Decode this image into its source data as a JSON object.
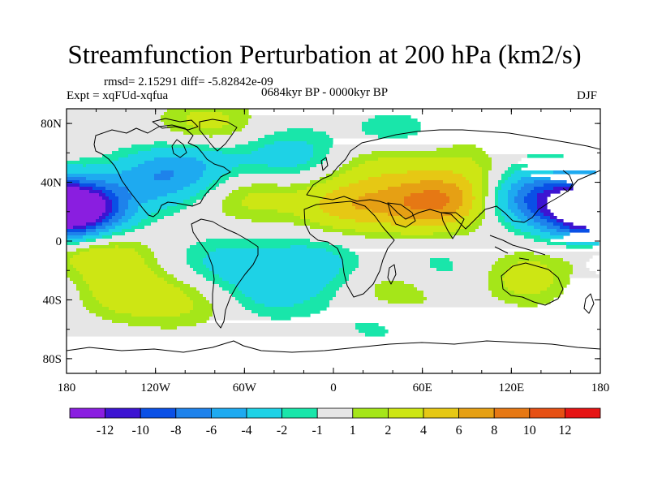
{
  "chart_data": {
    "type": "heatmap",
    "title": "Streamfunction Perturbation at 200 hPa (km2/s)",
    "stats": "rmsd= 2.15291 diff= -5.82842e-09",
    "left_label": "Expt = xqFUd-xqfua",
    "center_label": "0684kyr BP - 0000kyr BP",
    "right_label": "DJF",
    "xticks": [
      "180",
      "120W",
      "60W",
      "0",
      "60E",
      "120E",
      "180"
    ],
    "yticks": [
      "80N",
      "40N",
      "0",
      "40S",
      "80S"
    ],
    "xlim": [
      -180,
      180
    ],
    "ylim": [
      -90,
      90
    ],
    "colorbar": {
      "colors": [
        "#8a1ee0",
        "#3c14d2",
        "#0a50e6",
        "#1e82eb",
        "#1eaaf0",
        "#1ed2e6",
        "#19e6aa",
        "#e6e6e6",
        "#a5e619",
        "#cde614",
        "#e6c814",
        "#e6a014",
        "#e67814",
        "#e65014",
        "#e61414"
      ],
      "labels": [
        "-12",
        "-10",
        "-8",
        "-6",
        "-4",
        "-2",
        "-1",
        "1",
        "2",
        "4",
        "6",
        "8",
        "10",
        "12"
      ]
    },
    "anomalies": [
      {
        "lon": -178,
        "lat": 22,
        "value": -11
      },
      {
        "lon": 178,
        "lat": 22,
        "value": -10
      },
      {
        "lon": 133,
        "lat": 30,
        "value": -7
      },
      {
        "lon": -118,
        "lat": 42,
        "value": -5
      },
      {
        "lon": -90,
        "lat": 55,
        "value": -3
      },
      {
        "lon": -30,
        "lat": 58,
        "value": -3
      },
      {
        "lon": 40,
        "lat": 70,
        "value": -2.5
      },
      {
        "lon": 115,
        "lat": 58,
        "value": -2
      },
      {
        "lon": -85,
        "lat": 78,
        "value": 3
      },
      {
        "lon": 10,
        "lat": 25,
        "value": 5
      },
      {
        "lon": 60,
        "lat": 25,
        "value": 6
      },
      {
        "lon": 85,
        "lat": 30,
        "value": 4
      },
      {
        "lon": 100,
        "lat": 55,
        "value": 3
      },
      {
        "lon": -55,
        "lat": 30,
        "value": 2.5
      },
      {
        "lon": 35,
        "lat": 55,
        "value": 3
      },
      {
        "lon": -160,
        "lat": -10,
        "value": 4
      },
      {
        "lon": -140,
        "lat": -35,
        "value": 3
      },
      {
        "lon": -15,
        "lat": -15,
        "value": -3
      },
      {
        "lon": -75,
        "lat": -15,
        "value": -2.5
      },
      {
        "lon": -40,
        "lat": -35,
        "value": -2.5
      },
      {
        "lon": 45,
        "lat": -35,
        "value": 2.5
      },
      {
        "lon": 70,
        "lat": -20,
        "value": -1.8
      },
      {
        "lon": 135,
        "lat": -25,
        "value": 3.5
      },
      {
        "lon": 170,
        "lat": -25,
        "value": -1.8
      },
      {
        "lon": -100,
        "lat": -42,
        "value": 2
      },
      {
        "lon": 30,
        "lat": -55,
        "value": -1.5
      }
    ]
  }
}
